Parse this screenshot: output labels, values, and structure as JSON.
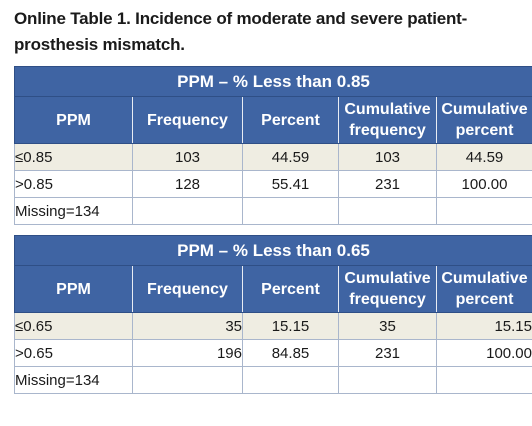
{
  "caption": {
    "line1": "Online Table 1. Incidence of moderate and severe patient-",
    "line2": "prosthesis mismatch."
  },
  "columns": {
    "ppm": "PPM",
    "frequency": "Frequency",
    "percent": "Percent",
    "cumulative_frequency": "Cumulative frequency",
    "cumulative_percent": "Cumulative percent"
  },
  "tables": [
    {
      "title": "PPM – % Less than 0.85",
      "rows": [
        {
          "ppm": "≤0.85",
          "frequency": "103",
          "percent": "44.59",
          "cumulative_frequency": "103",
          "cumulative_percent": "44.59"
        },
        {
          "ppm": ">0.85",
          "frequency": "128",
          "percent": "55.41",
          "cumulative_frequency": "231",
          "cumulative_percent": "100.00"
        }
      ],
      "missing": "Missing=134"
    },
    {
      "title": "PPM – % Less than 0.65",
      "rows": [
        {
          "ppm": "≤0.65",
          "frequency": "35",
          "percent": "15.15",
          "cumulative_frequency": "35",
          "cumulative_percent": "15.15"
        },
        {
          "ppm": ">0.65",
          "frequency": "196",
          "percent": "84.85",
          "cumulative_frequency": "231",
          "cumulative_percent": "100.00"
        }
      ],
      "missing": "Missing=134"
    }
  ]
}
